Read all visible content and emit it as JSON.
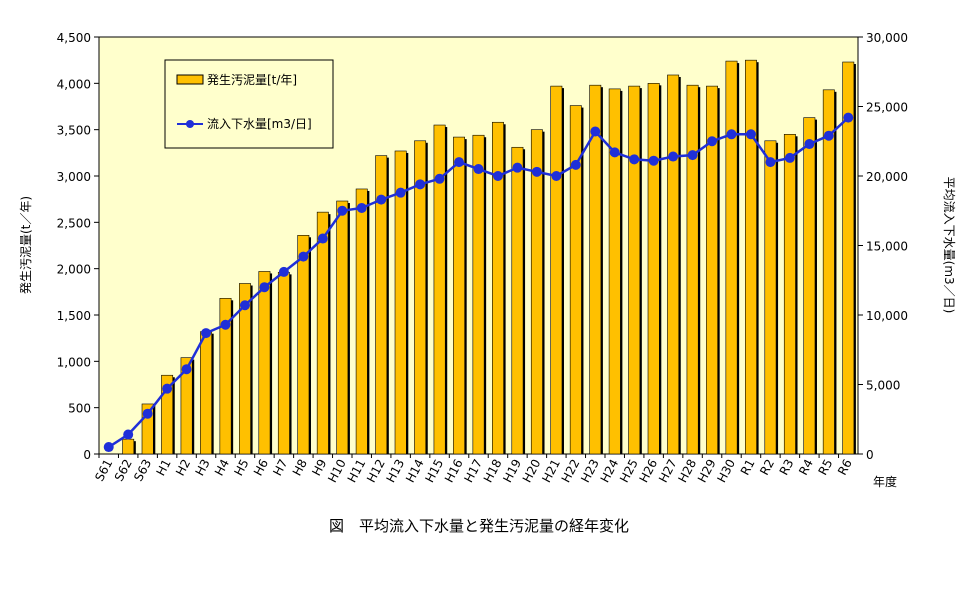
{
  "chart_data": {
    "type": "bar+line",
    "caption": "図　平均流入下水量と発生汚泥量の経年変化",
    "xlabel": "年度",
    "categories": [
      "S61",
      "S62",
      "S63",
      "H1",
      "H2",
      "H3",
      "H4",
      "H5",
      "H6",
      "H7",
      "H8",
      "H9",
      "H10",
      "H11",
      "H12",
      "H13",
      "H14",
      "H15",
      "H16",
      "H17",
      "H18",
      "H19",
      "H20",
      "H21",
      "H22",
      "H23",
      "H24",
      "H25",
      "H26",
      "H27",
      "H28",
      "H29",
      "H30",
      "R1",
      "R2",
      "R3",
      "R4",
      "R5",
      "R6"
    ],
    "y_left": {
      "label": "発生汚泥量(t／年)",
      "lim": [
        0,
        4500
      ],
      "ticks": [
        "0",
        "500",
        "1,000",
        "1,500",
        "2,000",
        "2,500",
        "3,000",
        "3,500",
        "4,000",
        "4,500"
      ]
    },
    "y_right": {
      "label": "平均流入下水量(m3／日)",
      "lim": [
        0,
        30000
      ],
      "ticks": [
        "0",
        "5,000",
        "10,000",
        "15,000",
        "20,000",
        "25,000",
        "30,000"
      ]
    },
    "series": [
      {
        "name": "発生汚泥量[t/年]",
        "type": "bar",
        "axis": "left",
        "color": "#FFC000",
        "values": [
          0,
          160,
          540,
          850,
          1040,
          1320,
          1680,
          1840,
          1970,
          1960,
          2360,
          2610,
          2730,
          2860,
          3220,
          3270,
          3380,
          3550,
          3420,
          3440,
          3580,
          3310,
          3500,
          3970,
          3760,
          3980,
          3940,
          3970,
          4000,
          4090,
          3980,
          3970,
          4240,
          4250,
          3380,
          3450,
          3630,
          3930,
          4230
        ]
      },
      {
        "name": "流入下水量[m3/日]",
        "type": "line",
        "axis": "right",
        "color": "#1F2FD8",
        "values": [
          500,
          1400,
          2900,
          4700,
          6100,
          8700,
          9300,
          10700,
          12000,
          13100,
          14200,
          15500,
          17500,
          17700,
          18300,
          18800,
          19400,
          19800,
          21000,
          20500,
          20000,
          20600,
          20300,
          20000,
          20800,
          23200,
          21700,
          21200,
          21100,
          21400,
          21500,
          22500,
          23000,
          23000,
          21000,
          21300,
          22300,
          22900,
          24200
        ]
      }
    ],
    "legend": {
      "placement": "top-left",
      "bar_label": "発生汚泥量[t/年]",
      "line_label": "流入下水量[m3/日]"
    },
    "plot_background": "#FFFFCC",
    "grid": false
  }
}
